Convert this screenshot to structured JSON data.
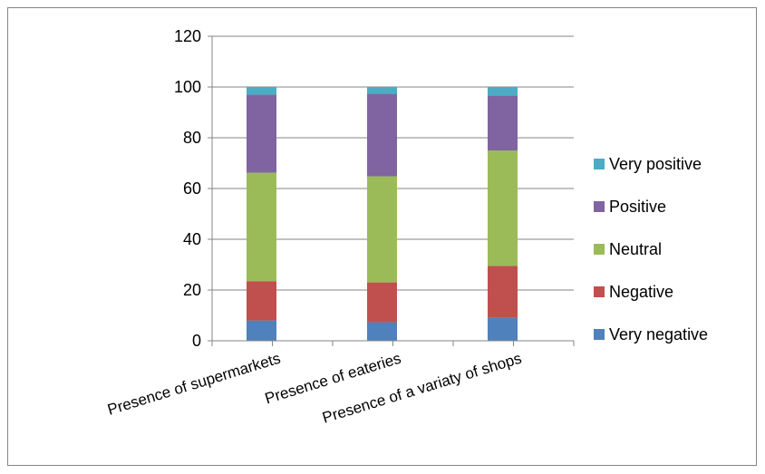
{
  "chart_data": {
    "type": "bar",
    "stacked": true,
    "categories": [
      "Presence of supermarkets",
      "Presence of eateries",
      "Presence of a variaty of shops"
    ],
    "series": [
      {
        "name": "Very negative",
        "color": "#4f81bd",
        "values": [
          8,
          7.3,
          9
        ]
      },
      {
        "name": "Negative",
        "color": "#c0504d",
        "values": [
          15.5,
          15.7,
          20.5
        ]
      },
      {
        "name": "Neutral",
        "color": "#9bbb59",
        "values": [
          42.7,
          41.8,
          45.5
        ]
      },
      {
        "name": "Positive",
        "color": "#8064a2",
        "values": [
          30.8,
          32.5,
          21.7
        ]
      },
      {
        "name": "Very positive",
        "color": "#4bacc6",
        "values": [
          3,
          2.7,
          3.3
        ]
      }
    ],
    "ylim": [
      0,
      120
    ],
    "yticks": [
      "0",
      "20",
      "40",
      "60",
      "80",
      "100",
      "120"
    ],
    "grid": true,
    "legend_position": "right"
  }
}
